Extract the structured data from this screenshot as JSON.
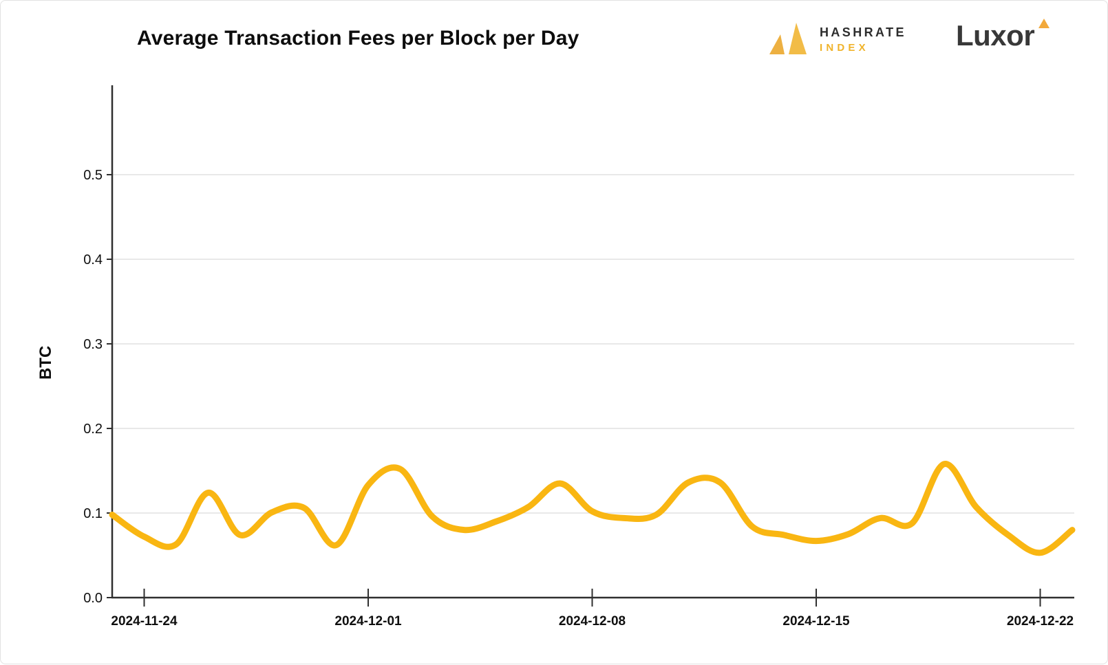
{
  "logos": {
    "hashrate_line1": "HASHRATE",
    "hashrate_line2": "INDEX",
    "luxor": "Luxor",
    "brand_gold": "#F0B32B",
    "brand_dark": "#2D2D2D"
  },
  "chart_data": {
    "type": "line",
    "title": "Average Transaction Fees per Block per Day",
    "ylabel": "BTC",
    "xlabel": "",
    "line_color": "#F9B612",
    "axis_color": "#2f2f2f",
    "grid_color": "#d9d9d9",
    "grid": "horizontal",
    "legend_position": "none",
    "ylim": [
      0,
      0.6
    ],
    "y_ticks": [
      "0.0",
      "0.1",
      "0.2",
      "0.3",
      "0.4",
      "0.5"
    ],
    "y_tick_values": [
      0,
      0.1,
      0.2,
      0.3,
      0.4,
      0.5
    ],
    "x_tick_labels": [
      "2024-11-24",
      "2024-12-01",
      "2024-12-08",
      "2024-12-15",
      "2024-12-22"
    ],
    "x": [
      "2024-11-23",
      "2024-11-24",
      "2024-11-25",
      "2024-11-26",
      "2024-11-27",
      "2024-11-28",
      "2024-11-29",
      "2024-11-30",
      "2024-12-01",
      "2024-12-02",
      "2024-12-03",
      "2024-12-04",
      "2024-12-05",
      "2024-12-06",
      "2024-12-07",
      "2024-12-08",
      "2024-12-09",
      "2024-12-10",
      "2024-12-11",
      "2024-12-12",
      "2024-12-13",
      "2024-12-14",
      "2024-12-15",
      "2024-12-16",
      "2024-12-17",
      "2024-12-18",
      "2024-12-19",
      "2024-12-20",
      "2024-12-21",
      "2024-12-22",
      "2024-12-23"
    ],
    "values": [
      0.098,
      0.072,
      0.063,
      0.124,
      0.074,
      0.101,
      0.106,
      0.062,
      0.133,
      0.152,
      0.096,
      0.08,
      0.09,
      0.107,
      0.135,
      0.102,
      0.094,
      0.098,
      0.136,
      0.136,
      0.084,
      0.074,
      0.067,
      0.075,
      0.094,
      0.088,
      0.158,
      0.107,
      0.074,
      0.053,
      0.08
    ]
  }
}
